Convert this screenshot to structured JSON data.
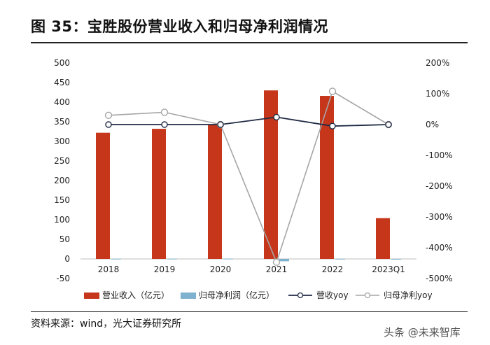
{
  "title": "图 35：宝胜股份营业收入和归母净利润情况",
  "source": "资料来源：wind，光大证券研究所",
  "watermark": "头条 @未来智库",
  "colors": {
    "bar_revenue": "#C5361A",
    "bar_profit": "#7FB2CF",
    "line_rev_yoy": "#1F2A44",
    "line_profit_yoy": "#A6A6A6"
  },
  "chart_data": {
    "type": "bar",
    "categories": [
      "2018",
      "2019",
      "2020",
      "2021",
      "2022",
      "2023Q1"
    ],
    "series": [
      {
        "name": "营业收入（亿元）",
        "type": "bar",
        "axis": "left",
        "values": [
          322,
          332,
          342,
          430,
          416,
          104
        ]
      },
      {
        "name": "归母净利润（亿元）",
        "type": "bar",
        "axis": "left",
        "values": [
          0.5,
          0.6,
          0.7,
          -6,
          0.4,
          0.1
        ]
      },
      {
        "name": "营收yoy",
        "type": "line",
        "axis": "right",
        "values": [
          0,
          0,
          0,
          24,
          -5,
          0
        ]
      },
      {
        "name": "归母净利yoy",
        "type": "line",
        "axis": "right",
        "values": [
          30,
          40,
          0,
          -447,
          108,
          0
        ]
      }
    ],
    "left_axis": {
      "ticks": [
        "500",
        "450",
        "400",
        "350",
        "300",
        "250",
        "200",
        "150",
        "100",
        "50",
        "0",
        "-50"
      ],
      "ylim": [
        -50,
        500
      ]
    },
    "right_axis": {
      "ticks": [
        "200%",
        "100%",
        "0%",
        "-100%",
        "-200%",
        "-300%",
        "-400%",
        "-500%"
      ],
      "ylim": [
        -500,
        200
      ]
    },
    "legend": [
      "营业收入（亿元）",
      "归母净利润（亿元）",
      "营收yoy",
      "归母净利yoy"
    ]
  }
}
